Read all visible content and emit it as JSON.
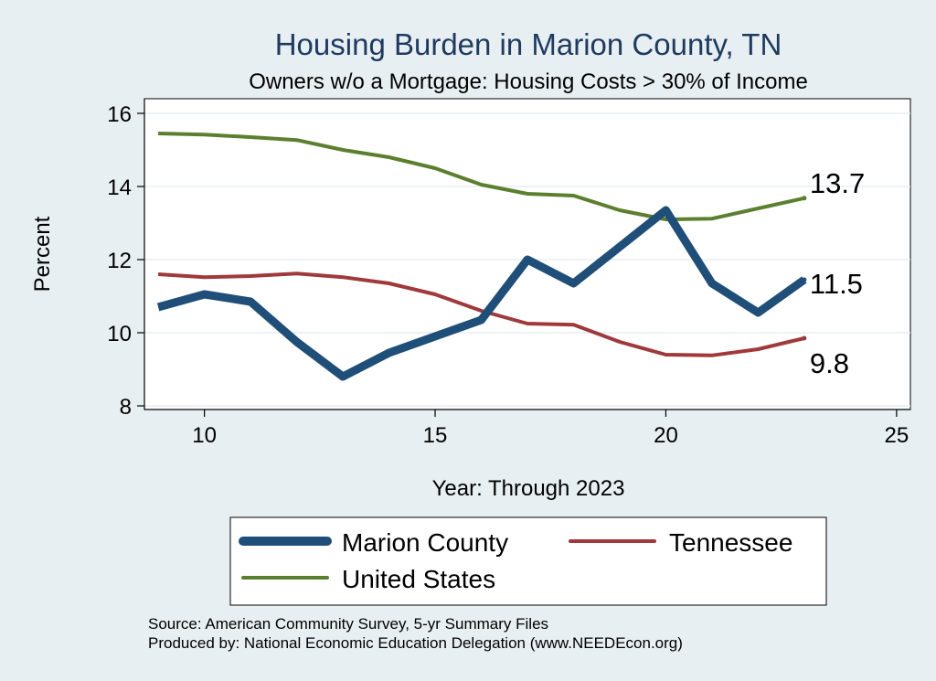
{
  "chart_data": {
    "type": "line",
    "title": "Housing Burden in Marion County, TN",
    "subtitle": "Owners w/o a Mortgage: Housing Costs > 30% of Income",
    "xlabel": "Year: Through 2023",
    "ylabel": "Percent",
    "xlim": [
      8.7,
      25.3
    ],
    "ylim": [
      7.9,
      16.4
    ],
    "xticks": [
      10,
      15,
      20,
      25
    ],
    "yticks": [
      8,
      10,
      12,
      14,
      16
    ],
    "grid": true,
    "legend_position": "bottom",
    "series": [
      {
        "name": "Marion County",
        "color": "#1f4e79",
        "x": [
          9,
          10,
          11,
          12,
          13,
          14,
          15,
          16,
          17,
          18,
          19,
          20,
          21,
          22,
          23
        ],
        "values": [
          10.7,
          11.05,
          10.85,
          9.75,
          8.8,
          9.45,
          9.9,
          10.35,
          12.0,
          11.35,
          12.35,
          13.35,
          11.35,
          10.55,
          11.45
        ]
      },
      {
        "name": "Tennessee",
        "color": "#a0393b",
        "x": [
          9,
          10,
          11,
          12,
          13,
          14,
          15,
          16,
          17,
          18,
          19,
          20,
          21,
          22,
          23
        ],
        "values": [
          11.6,
          11.52,
          11.55,
          11.62,
          11.52,
          11.35,
          11.05,
          10.6,
          10.25,
          10.22,
          9.75,
          9.4,
          9.38,
          9.55,
          9.85
        ]
      },
      {
        "name": "United States",
        "color": "#5b7f2e",
        "x": [
          9,
          10,
          11,
          12,
          13,
          14,
          15,
          16,
          17,
          18,
          19,
          20,
          21,
          22,
          23
        ],
        "values": [
          15.45,
          15.42,
          15.35,
          15.27,
          15.0,
          14.8,
          14.5,
          14.05,
          13.8,
          13.75,
          13.35,
          13.1,
          13.12,
          13.4,
          13.68
        ]
      }
    ],
    "end_labels": [
      "13.7",
      "11.5",
      "9.8"
    ],
    "source": "Source: American Community Survey, 5-yr Summary Files",
    "produced_by": "Produced by: National Economic Education Delegation (www.NEEDEcon.org)"
  }
}
